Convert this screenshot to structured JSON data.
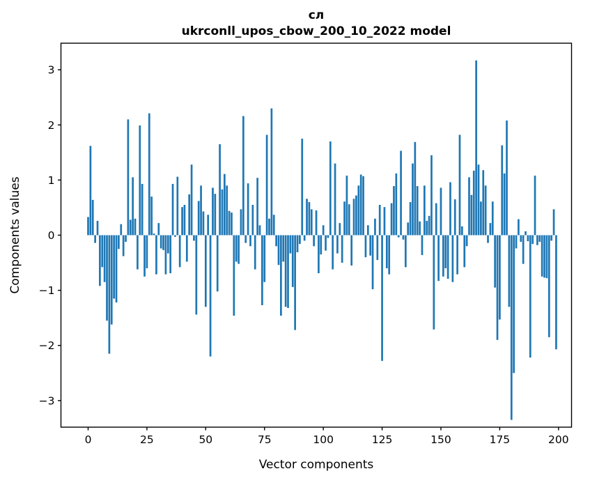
{
  "chart_data": {
    "type": "bar",
    "title_line1": "сл",
    "title_line2": "ukrconll_upos_cbow_200_10_2022 model",
    "xlabel": "Vector components",
    "ylabel": "Components values",
    "x_ticks": [
      0,
      25,
      50,
      75,
      100,
      125,
      150,
      175,
      200
    ],
    "y_ticks": [
      -3,
      -2,
      -1,
      0,
      1,
      2,
      3
    ],
    "xlim": [
      -10.4,
      209.4
    ],
    "ylim": [
      -3.48,
      3.48
    ],
    "grid": false,
    "legend": "none",
    "bar_color": "#1f77b4",
    "n_bars": 200,
    "x_start": 0,
    "values": [
      0.33,
      1.62,
      0.64,
      -0.14,
      0.26,
      -0.92,
      -0.58,
      -0.85,
      -1.55,
      -2.15,
      -1.62,
      -1.15,
      -1.22,
      -0.25,
      0.2,
      -0.38,
      -0.12,
      2.1,
      0.28,
      1.05,
      0.3,
      -0.62,
      1.99,
      0.93,
      -0.75,
      -0.6,
      2.21,
      0.7,
      0.03,
      -0.71,
      0.22,
      -0.24,
      -0.27,
      -0.71,
      -0.33,
      -0.69,
      0.93,
      -0.03,
      1.06,
      -0.58,
      0.51,
      0.55,
      -0.48,
      0.74,
      1.28,
      -0.1,
      -1.44,
      0.62,
      0.9,
      0.43,
      -1.3,
      0.37,
      -2.2,
      0.86,
      0.75,
      -1.02,
      1.65,
      0.83,
      1.11,
      0.9,
      0.44,
      0.41,
      -1.46,
      -0.48,
      -0.52,
      0.47,
      2.16,
      -0.14,
      0.94,
      -0.2,
      0.55,
      -0.62,
      1.04,
      0.18,
      -1.27,
      -0.85,
      1.82,
      0.3,
      2.3,
      0.37,
      -0.2,
      -0.54,
      -1.46,
      -0.48,
      -1.3,
      -1.32,
      -0.33,
      -0.94,
      -1.72,
      -0.31,
      -0.16,
      1.75,
      -0.1,
      0.66,
      0.6,
      0.47,
      -0.2,
      0.45,
      -0.69,
      -0.35,
      0.18,
      -0.28,
      -0.05,
      1.7,
      -0.62,
      1.3,
      -0.33,
      0.22,
      -0.5,
      0.61,
      1.08,
      0.56,
      -0.55,
      0.66,
      0.72,
      0.9,
      1.1,
      1.07,
      -0.4,
      0.18,
      -0.37,
      -0.98,
      0.3,
      -0.45,
      0.55,
      -2.28,
      0.51,
      -0.6,
      -0.71,
      0.58,
      0.89,
      1.12,
      -0.04,
      1.53,
      -0.08,
      -0.58,
      0.23,
      0.6,
      1.3,
      1.69,
      0.89,
      0.25,
      -0.36,
      0.9,
      0.26,
      0.35,
      1.45,
      -1.71,
      0.58,
      -0.83,
      0.86,
      -0.75,
      -0.6,
      -0.79,
      0.96,
      -0.85,
      0.65,
      -0.71,
      1.82,
      0.16,
      -0.58,
      -0.2,
      1.05,
      0.73,
      1.17,
      3.17,
      1.28,
      0.61,
      1.18,
      0.9,
      -0.14,
      0.22,
      0.61,
      -0.95,
      -1.9,
      -1.53,
      1.63,
      1.12,
      2.08,
      -1.3,
      -3.35,
      -2.5,
      -0.24,
      0.29,
      -0.12,
      -0.52,
      0.07,
      -0.11,
      -2.22,
      -0.16,
      1.08,
      -0.18,
      -0.12,
      -0.75,
      -0.77,
      -0.78,
      -1.85,
      -0.1,
      0.47,
      -2.07
    ]
  }
}
